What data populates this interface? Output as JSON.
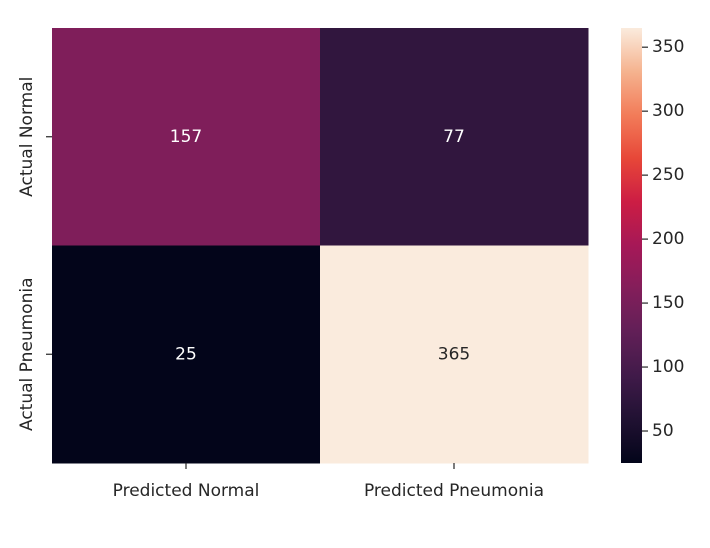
{
  "chart_data": {
    "type": "heatmap",
    "x_categories": [
      "Predicted Normal",
      "Predicted Pneumonia"
    ],
    "y_categories": [
      "Actual Normal",
      "Actual Pneumonia"
    ],
    "values": [
      [
        157,
        77
      ],
      [
        25,
        365
      ]
    ],
    "colormap": "rocket",
    "colorbar": {
      "range": [
        25,
        365
      ],
      "ticks": [
        50,
        100,
        150,
        200,
        250,
        300,
        350
      ]
    },
    "annotations": true,
    "annotation_colors": {
      "on_dark": "#ffffff",
      "on_light": "#262626"
    },
    "colors": {
      "tick_text": "#262626",
      "axis_line": "#262626"
    }
  }
}
